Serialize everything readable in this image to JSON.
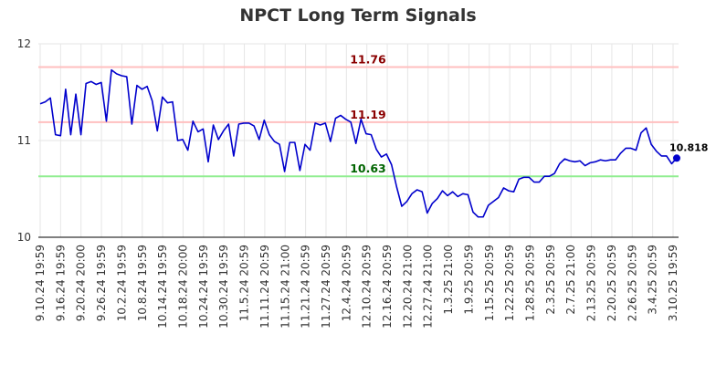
{
  "chart_data": {
    "type": "line",
    "title": "NPCT Long Term Signals",
    "xlabel": "",
    "ylabel": "",
    "ylim": [
      10,
      12
    ],
    "yticks": [
      "10",
      "11",
      "12"
    ],
    "grid": true,
    "x_tick_labels": [
      "9.10.24 19:59",
      "9.16.24 19:59",
      "9.20.24 20:00",
      "9.26.24 19:59",
      "10.2.24 19:59",
      "10.8.24 19:59",
      "10.14.24 19:59",
      "10.18.24 20:00",
      "10.24.24 19:59",
      "10.30.24 19:59",
      "11.5.24 20:59",
      "11.11.24 20:59",
      "11.15.24 21:00",
      "11.21.24 20:59",
      "11.27.24 20:59",
      "12.4.24 20:59",
      "12.10.24 20:59",
      "12.16.24 20:59",
      "12.20.24 21:00",
      "12.27.24 21:00",
      "1.3.25 21:00",
      "1.9.25 20:59",
      "1.15.25 20:59",
      "1.22.25 20:59",
      "1.28.25 20:59",
      "2.3.25 20:59",
      "2.7.25 21:00",
      "2.13.25 20:59",
      "2.20.25 20:59",
      "2.26.25 20:59",
      "3.4.25 20:59",
      "3.10.25 19:59"
    ],
    "reference_lines": [
      {
        "value": 11.76,
        "label": "11.76",
        "color": "#ffbfbf",
        "label_color": "#8b0000"
      },
      {
        "value": 11.19,
        "label": "11.19",
        "color": "#ffbfbf",
        "label_color": "#8b0000"
      },
      {
        "value": 10.63,
        "label": "10.63",
        "color": "#90ee90",
        "label_color": "#006400"
      }
    ],
    "series": [
      {
        "color": "#0000cc",
        "values": [
          11.38,
          11.4,
          11.44,
          11.06,
          11.05,
          11.53,
          11.06,
          11.48,
          11.06,
          11.59,
          11.61,
          11.58,
          11.6,
          11.2,
          11.73,
          11.69,
          11.67,
          11.66,
          11.17,
          11.57,
          11.53,
          11.56,
          11.41,
          11.1,
          11.45,
          11.39,
          11.4,
          11.0,
          11.01,
          10.9,
          11.2,
          11.09,
          11.12,
          10.78,
          11.16,
          11.01,
          11.1,
          11.17,
          10.84,
          11.17,
          11.18,
          11.18,
          11.15,
          11.01,
          11.21,
          11.06,
          10.99,
          10.96,
          10.68,
          10.98,
          10.98,
          10.69,
          10.96,
          10.9,
          11.18,
          11.16,
          11.18,
          10.99,
          11.23,
          11.26,
          11.22,
          11.19,
          10.97,
          11.22,
          11.07,
          11.06,
          10.91,
          10.83,
          10.86,
          10.75,
          10.52,
          10.32,
          10.37,
          10.45,
          10.49,
          10.47,
          10.25,
          10.35,
          10.4,
          10.48,
          10.43,
          10.47,
          10.42,
          10.45,
          10.44,
          10.26,
          10.21,
          10.21,
          10.33,
          10.37,
          10.41,
          10.51,
          10.48,
          10.47,
          10.6,
          10.62,
          10.62,
          10.57,
          10.57,
          10.63,
          10.63,
          10.66,
          10.76,
          10.81,
          10.79,
          10.78,
          10.79,
          10.74,
          10.77,
          10.78,
          10.8,
          10.79,
          10.8,
          10.8,
          10.87,
          10.92,
          10.92,
          10.9,
          11.08,
          11.13,
          10.96,
          10.89,
          10.84,
          10.84,
          10.76,
          10.818
        ]
      }
    ],
    "last_value_label": "10.818"
  }
}
